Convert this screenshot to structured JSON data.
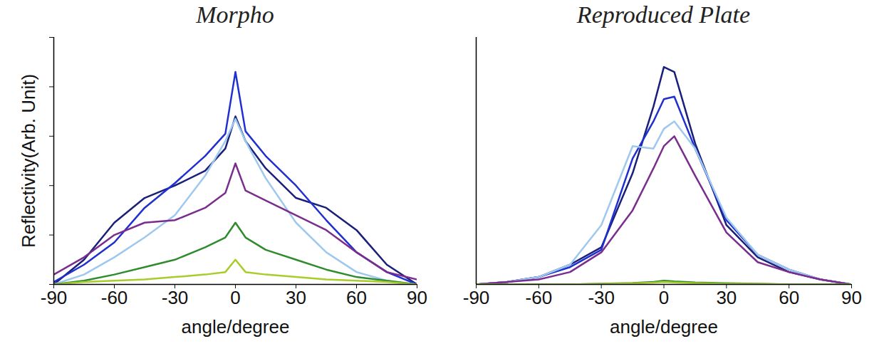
{
  "chart_data": [
    {
      "type": "line",
      "title": "Morpho",
      "xlabel": "angle/degree",
      "ylabel": "Reflectivity(Arb. Unit)",
      "x": [
        -90,
        -75,
        -60,
        -45,
        -30,
        -15,
        -5,
        0,
        5,
        15,
        30,
        45,
        60,
        75,
        90
      ],
      "xlim": [
        -90,
        90
      ],
      "xticks": [
        -90,
        -60,
        -30,
        0,
        30,
        60,
        90
      ],
      "ylim": [
        0,
        100
      ],
      "yticks": [
        0,
        20,
        40,
        60,
        80,
        100
      ],
      "tick_labels": "x",
      "series": [
        {
          "color": "#1a1f7a",
          "values": [
            0,
            10,
            25,
            35,
            40,
            46,
            55,
            68,
            58,
            47,
            35,
            31,
            22,
            8,
            0
          ]
        },
        {
          "color": "#1f2fd0",
          "values": [
            1,
            8,
            17,
            31,
            41,
            52,
            61,
            86,
            62,
            52,
            40,
            26,
            13,
            5,
            0
          ]
        },
        {
          "color": "#9ec8ee",
          "values": [
            0,
            4,
            11,
            19,
            28,
            44,
            58,
            67,
            58,
            43,
            25,
            13,
            5,
            1.5,
            0
          ]
        },
        {
          "color": "#7b2d8e",
          "values": [
            4,
            11,
            20,
            25,
            26,
            31,
            37,
            49,
            38,
            34,
            28,
            22,
            13,
            5,
            2
          ]
        },
        {
          "color": "#2e8b2e",
          "values": [
            0,
            1.5,
            4,
            7,
            10,
            15,
            19,
            25,
            19,
            14,
            10,
            6,
            3,
            1.5,
            0
          ]
        },
        {
          "color": "#a8cc2a",
          "values": [
            0,
            1,
            1.5,
            2,
            3,
            4,
            5,
            10,
            5,
            4,
            3,
            2,
            1.5,
            1,
            0
          ]
        }
      ]
    },
    {
      "type": "line",
      "title": "Reproduced Plate",
      "xlabel": "angle/degree",
      "x": [
        -90,
        -75,
        -60,
        -45,
        -30,
        -15,
        -5,
        0,
        5,
        15,
        30,
        45,
        60,
        75,
        90
      ],
      "xlim": [
        -90,
        90
      ],
      "xticks": [
        -90,
        -60,
        -30,
        0,
        30,
        60,
        90
      ],
      "ylim": [
        0,
        100
      ],
      "tick_labels": "x",
      "series": [
        {
          "color": "#1a1f7a",
          "values": [
            0,
            1,
            3,
            8,
            15,
            45,
            72,
            88,
            86,
            57,
            24,
            11,
            5,
            2,
            0
          ]
        },
        {
          "color": "#1f2fd0",
          "values": [
            0,
            1,
            3,
            7,
            14,
            51,
            66,
            75,
            76,
            55,
            26,
            12,
            6,
            2,
            0
          ]
        },
        {
          "color": "#9ec8ee",
          "values": [
            0,
            1,
            3,
            8,
            24,
            56,
            55,
            63,
            66,
            55,
            27,
            12,
            6,
            2,
            0
          ]
        },
        {
          "color": "#7b2d8e",
          "values": [
            0,
            1,
            2,
            5,
            13,
            30,
            47,
            56,
            60,
            44,
            21,
            9,
            5,
            2,
            0
          ]
        },
        {
          "color": "#2e8b2e",
          "values": [
            0,
            0,
            0,
            0,
            0.3,
            0.6,
            1,
            1.5,
            1.2,
            0.8,
            0.5,
            0.3,
            0,
            0,
            0
          ]
        },
        {
          "color": "#a8cc2a",
          "values": [
            0,
            0,
            0,
            0,
            0.2,
            0.4,
            0.7,
            1,
            0.8,
            0.5,
            0.3,
            0.2,
            0,
            0,
            0
          ]
        }
      ]
    }
  ]
}
